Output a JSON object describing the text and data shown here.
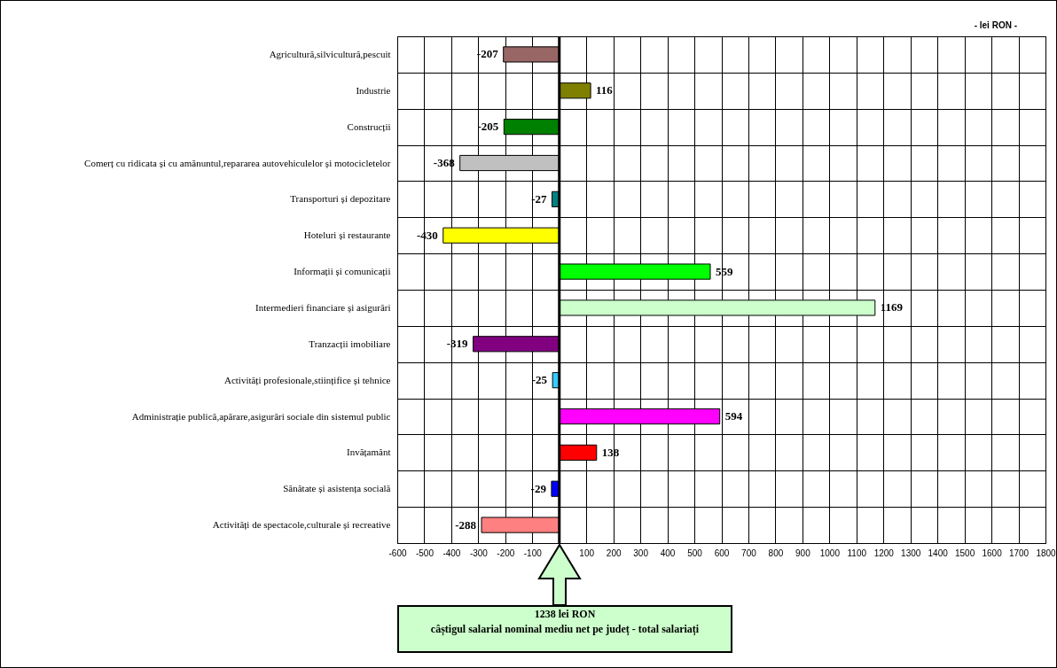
{
  "chart_data": {
    "type": "bar",
    "orientation": "horizontal",
    "categories": [
      "Agricultură,silvicultură,pescuit",
      "Industrie",
      "Construcții",
      "Comerț cu ridicata și cu amănuntul,repararea autovehiculelor și motocicletelor",
      "Transporturi și depozitare",
      "Hoteluri și restaurante",
      "Informații și comunicații",
      "Intermedieri financiare și asigurări",
      "Tranzacții imobiliare",
      "Activități profesionale,stiințifice și tehnice",
      "Administrație publică,apărare,asigurări sociale din sistemul public",
      "Invățamânt",
      "Sănătate și asistența socială",
      "Activități de spectacole,culturale și recreative"
    ],
    "values": [
      -207,
      116,
      -205,
      -368,
      -27,
      -430,
      559,
      1169,
      -319,
      -25,
      594,
      138,
      -29,
      -288
    ],
    "colors": [
      "#996666",
      "#808000",
      "#008000",
      "#c0c0c0",
      "#008080",
      "#ffff00",
      "#00ff00",
      "#ccffcc",
      "#800080",
      "#33ccff",
      "#ff00ff",
      "#ff0000",
      "#0000ff",
      "#ff8080"
    ],
    "xlim": [
      -600,
      1800
    ],
    "xticks": [
      -600,
      -500,
      -400,
      -300,
      -200,
      -100,
      100,
      200,
      300,
      400,
      500,
      600,
      700,
      800,
      900,
      1000,
      1100,
      1200,
      1300,
      1400,
      1500,
      1600,
      1700,
      1800
    ],
    "grid": true,
    "data_labels": true,
    "ref_lines": [
      {
        "axis": "x",
        "value": 0,
        "color": "#000000"
      }
    ],
    "annotations": [
      "- lei RON -",
      "1238 lei RON\ncâștigul salarial nominal mediu net pe județ - total salariați"
    ]
  }
}
